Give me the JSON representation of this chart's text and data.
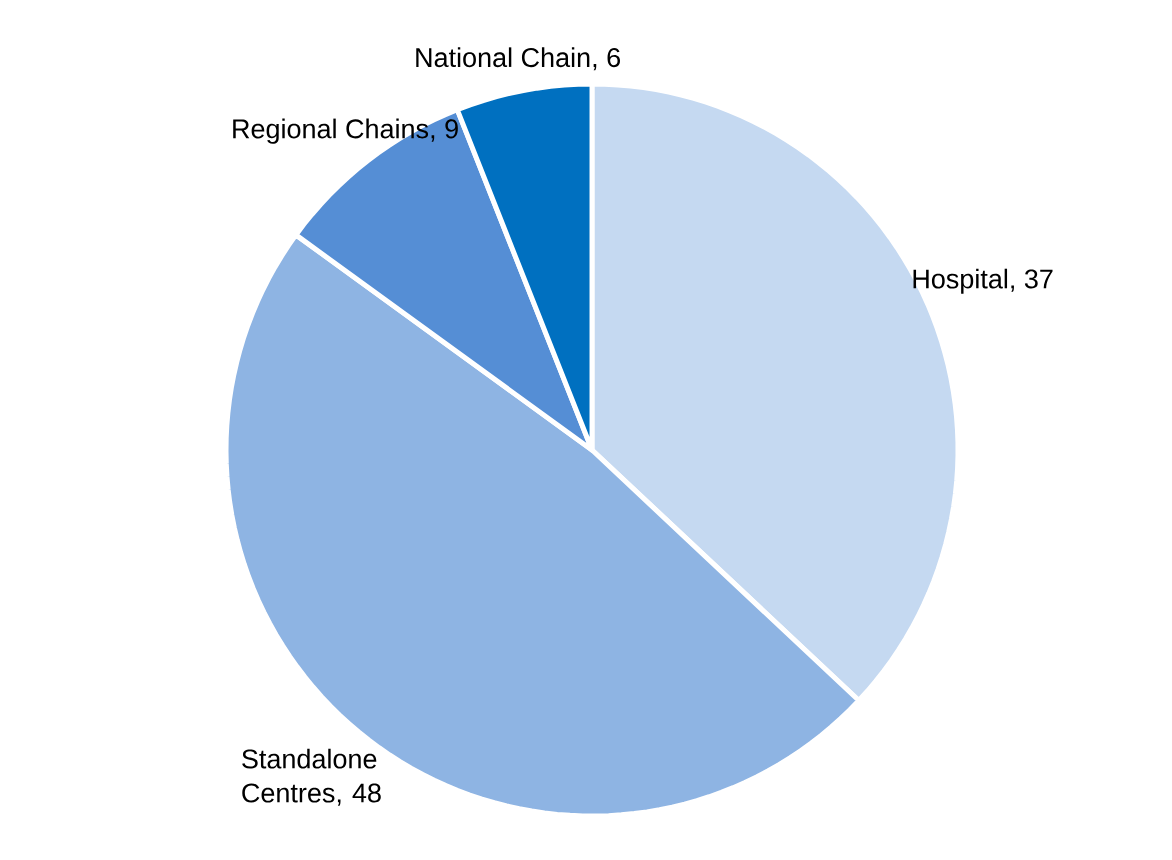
{
  "chart_data": {
    "type": "pie",
    "categories": [
      "Hospital",
      "Standalone Centres",
      "Regional Chains",
      "National Chain"
    ],
    "values": [
      37,
      48,
      9,
      6
    ],
    "value_labels": [
      ", 37",
      ", 48",
      ", 9",
      ", 6"
    ],
    "colors": [
      "#c5d9f1",
      "#8eb4e3",
      "#558ed5",
      "#0070c0"
    ],
    "data_labels": true
  }
}
